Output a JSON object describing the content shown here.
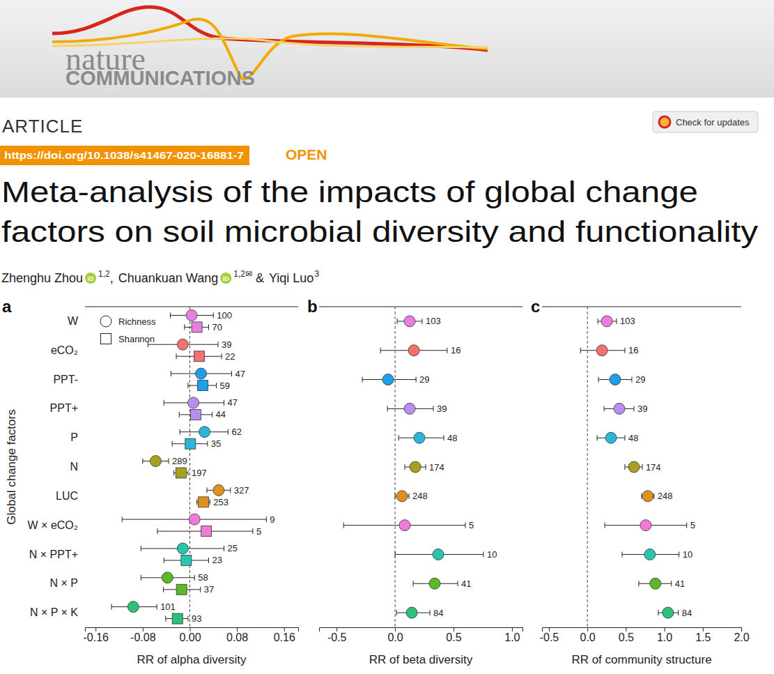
{
  "header": {
    "journal": [
      "nature",
      "COMMUNICATIONS"
    ],
    "check_updates": "Check for updates",
    "article_type": "ARTICLE",
    "doi": "https://doi.org/10.1038/s41467-020-16881-7",
    "access": "OPEN",
    "title": [
      "Meta-analysis of the impacts of global change",
      "factors on soil microbial diversity and functionality"
    ],
    "orcid": "iD",
    "corresponding_mark": "✉",
    "authors": [
      {
        "name": "Zhenghu Zhou",
        "affiliations": "1,2",
        "orcid": true,
        "corresponding": false
      },
      {
        "name": "Chuankuan Wang",
        "affiliations": "1,2",
        "orcid": true,
        "corresponding": true
      },
      {
        "name": "Yiqi Luo",
        "affiliations": "3",
        "orcid": false,
        "corresponding": false
      }
    ],
    "author_separators": [
      ", ",
      " & "
    ]
  },
  "chart_data": [
    {
      "type": "forest",
      "panel_label": "a",
      "orientation": "horizontal",
      "tick_labels": true,
      "legend": "upper left",
      "xlabel": "RR of alpha diversity",
      "ylabel": "Global change factors",
      "xlim": [
        -0.178,
        0.184
      ],
      "xticks": [
        -0.16,
        -0.08,
        {
          "value": 0,
          "label": "0.00"
        },
        0.08,
        0.16
      ],
      "reference_x": 0,
      "categories": [
        "W",
        "eCO₂",
        "PPT-",
        "PPT+",
        "P",
        "N",
        "LUC",
        "W × eCO₂",
        "N × PPT+",
        "N × P",
        "N × P × K"
      ],
      "series": [
        {
          "name": "Richness",
          "marker": "circle",
          "colors": [
            "#e87fe0",
            "#f0716d",
            "#1e9fe8",
            "#b98ef0",
            "#2cb5d8",
            "#a8a020",
            "#e0901e",
            "#f07ad8",
            "#28c5b0",
            "#5cb82a",
            "#2cc07a"
          ],
          "values": [
            0.003,
            -0.012,
            0.019,
            0.006,
            0.025,
            -0.058,
            0.049,
            0.008,
            -0.012,
            -0.038,
            -0.096
          ],
          "lower": [
            -0.033,
            -0.071,
            -0.032,
            -0.044,
            -0.017,
            -0.08,
            0.029,
            -0.115,
            -0.083,
            -0.083,
            -0.133
          ],
          "upper": [
            0.04,
            0.048,
            0.071,
            0.058,
            0.065,
            -0.036,
            0.069,
            0.13,
            0.058,
            0.008,
            -0.056
          ],
          "n": [
            100,
            39,
            47,
            47,
            62,
            289,
            327,
            9,
            25,
            58,
            101
          ]
        },
        {
          "name": "Shannon",
          "marker": "square",
          "colors": [
            "#e87fe0",
            "#f0716d",
            "#1e9fe8",
            "#b98ef0",
            "#2cb5d8",
            "#a8a020",
            "#e0901e",
            "#f07ad8",
            "#28c5b0",
            "#5cb82a",
            "#2cc07a"
          ],
          "values": [
            0.012,
            0.016,
            0.022,
            0.01,
            0.001,
            -0.015,
            0.023,
            0.028,
            -0.006,
            -0.014,
            -0.021
          ],
          "lower": [
            -0.009,
            -0.023,
            -0.003,
            -0.018,
            -0.03,
            -0.027,
            0.012,
            -0.055,
            -0.044,
            -0.045,
            -0.041
          ],
          "upper": [
            0.032,
            0.054,
            0.045,
            0.038,
            0.03,
            -0.003,
            0.034,
            0.107,
            0.032,
            0.018,
            -0.003
          ],
          "n": [
            70,
            22,
            59,
            44,
            35,
            197,
            253,
            5,
            23,
            37,
            93
          ]
        }
      ]
    },
    {
      "type": "forest",
      "panel_label": "b",
      "orientation": "horizontal",
      "tick_labels": "x",
      "xlabel": "RR of beta diversity",
      "xlim": [
        -0.65,
        1.09
      ],
      "xticks": [
        -0.5,
        {
          "value": 0,
          "label": "0.0"
        },
        0.5,
        {
          "value": 1,
          "label": "1.0"
        }
      ],
      "reference_x": 0,
      "categories": [
        null,
        null,
        null,
        null,
        null,
        null,
        null,
        null,
        null,
        null,
        null
      ],
      "series": [
        {
          "marker": "circle",
          "colors": [
            "#e87fe0",
            "#f0716d",
            "#1e9fe8",
            "#b98ef0",
            "#2cb5d8",
            "#a8a020",
            "#e0901e",
            "#f07ad8",
            "#28c5b0",
            "#5cb82a",
            "#2cc07a"
          ],
          "values": [
            0.125,
            0.161,
            -0.06,
            0.125,
            0.208,
            0.173,
            0.06,
            0.083,
            0.369,
            0.339,
            0.143
          ],
          "lower": [
            0.018,
            -0.125,
            -0.28,
            -0.065,
            0.03,
            0.083,
            0.0,
            -0.44,
            0.0,
            0.155,
            0.012
          ],
          "upper": [
            0.232,
            0.446,
            0.179,
            0.327,
            0.417,
            0.262,
            0.119,
            0.601,
            0.756,
            0.536,
            0.298
          ],
          "n": [
            103,
            16,
            29,
            39,
            48,
            174,
            248,
            5,
            10,
            41,
            84
          ]
        }
      ]
    },
    {
      "type": "forest",
      "panel_label": "c",
      "orientation": "horizontal",
      "tick_labels": "x",
      "xlabel": "RR of community structure",
      "xlim": [
        -0.59,
        2.0
      ],
      "xticks": [
        -0.5,
        {
          "value": 0,
          "label": "0.0"
        },
        0.5,
        {
          "value": 1,
          "label": "1.0"
        },
        1.5,
        {
          "value": 2,
          "label": "2.0"
        }
      ],
      "reference_x": 0,
      "categories": [
        null,
        null,
        null,
        null,
        null,
        null,
        null,
        null,
        null,
        null,
        null
      ],
      "series": [
        {
          "marker": "circle",
          "colors": [
            "#e87fe0",
            "#f0716d",
            "#1e9fe8",
            "#b98ef0",
            "#2cb5d8",
            "#a8a020",
            "#e0901e",
            "#f07ad8",
            "#28c5b0",
            "#5cb82a",
            "#2cc07a"
          ],
          "values": [
            0.253,
            0.19,
            0.361,
            0.415,
            0.307,
            0.605,
            0.785,
            0.758,
            0.812,
            0.884,
            1.047
          ],
          "lower": [
            0.135,
            -0.09,
            0.144,
            0.217,
            0.126,
            0.487,
            0.704,
            0.226,
            0.451,
            0.668,
            0.921
          ],
          "upper": [
            0.379,
            0.487,
            0.578,
            0.605,
            0.487,
            0.713,
            0.866,
            1.291,
            1.191,
            1.092,
            1.182
          ],
          "n": [
            103,
            16,
            29,
            39,
            48,
            174,
            248,
            5,
            10,
            41,
            84
          ]
        }
      ]
    }
  ]
}
